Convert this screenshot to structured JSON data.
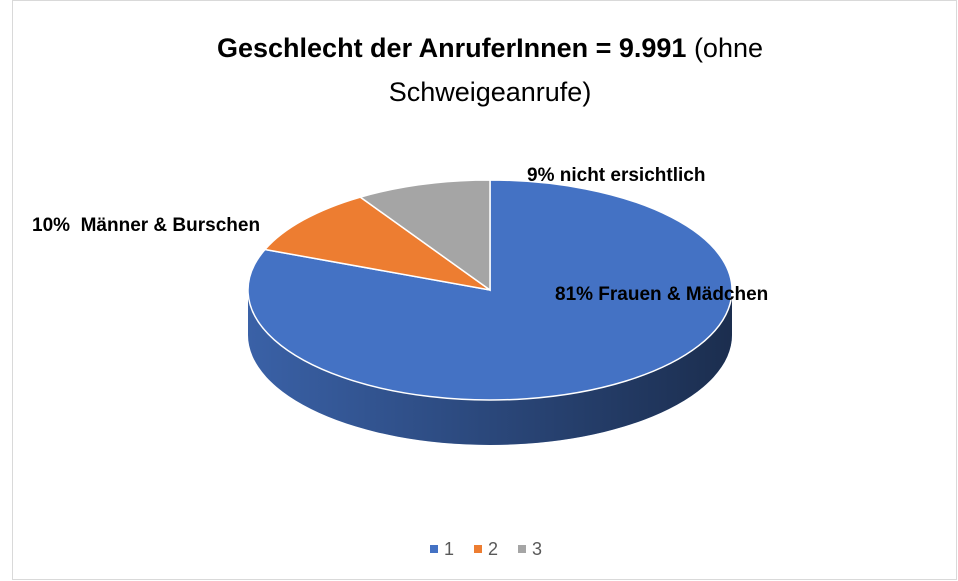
{
  "chart_data": {
    "type": "pie3d",
    "title": "Geschlecht der AnruferInnen = 9.991",
    "title_note": [
      "(ohne",
      "Schweigeanrufe)"
    ],
    "categories": [
      "1",
      "2",
      "3"
    ],
    "values": [
      81,
      10,
      9
    ],
    "value_labels": [
      "81% Frauen & Mädchen",
      "10%  Männer & Burschen",
      "9% nicht ersichtlich"
    ],
    "colors": [
      "#4472c4",
      "#ed7d31",
      "#a5a5a5"
    ],
    "legend": "bottom"
  }
}
